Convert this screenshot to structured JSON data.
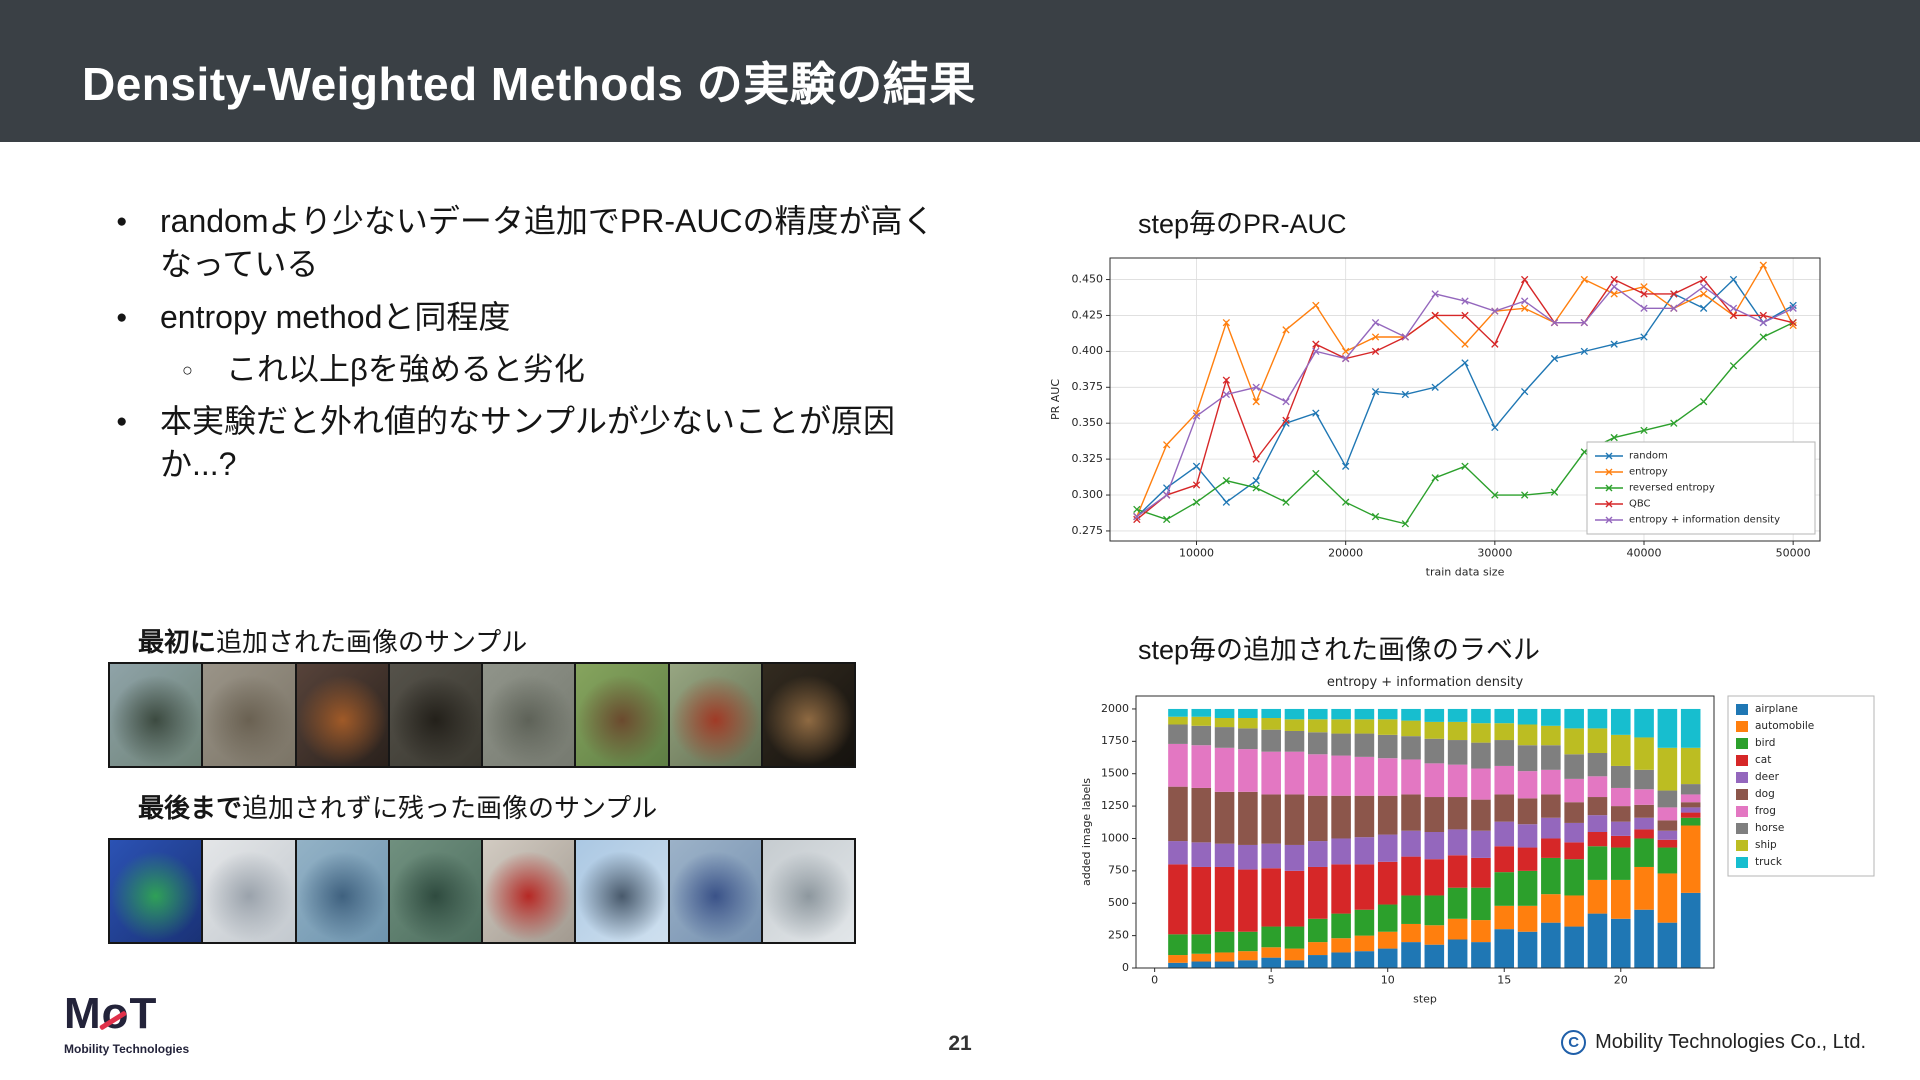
{
  "slide": {
    "title": "Density-Weighted Methods の実験の結果",
    "page_number": "21",
    "copyright_symbol": "C",
    "copyright_text": "Mobility Technologies Co., Ltd.",
    "logo_word": "MoT",
    "logo_sub": "Mobility Technologies"
  },
  "bullets": [
    {
      "level": 1,
      "marker": "●",
      "text": "randomより少ないデータ追加でPR-AUCの精度が高くなっている"
    },
    {
      "level": 1,
      "marker": "●",
      "text": "entropy methodと同程度"
    },
    {
      "level": 2,
      "marker": "○",
      "text": "これ以上βを強めると劣化"
    },
    {
      "level": 1,
      "marker": "●",
      "text": "本実験だと外れ値的なサンプルが少ないことが原因か...?"
    }
  ],
  "sections": {
    "pr_auc_label": "step毎のPR-AUC",
    "bar_label": "step毎の追加された画像のラベル",
    "first_images_label_bold": "最初に",
    "first_images_label_rest": "追加された画像のサンプル",
    "last_images_label_bold": "最後まで",
    "last_images_label_rest": "追加されずに残った画像のサンプル"
  },
  "chart_data": [
    {
      "id": "pr_auc_line",
      "type": "line",
      "title": "",
      "xlabel": "train data size",
      "ylabel": "PR AUC",
      "xlim": [
        4200,
        51800
      ],
      "ylim": [
        0.268,
        0.465
      ],
      "xticks": [
        10000,
        20000,
        30000,
        40000,
        50000
      ],
      "yticks": [
        0.275,
        0.3,
        0.325,
        0.35,
        0.375,
        0.4,
        0.425,
        0.45
      ],
      "grid": true,
      "marker": "x",
      "legend_position": "lower right",
      "x": [
        6000,
        8000,
        10000,
        12000,
        14000,
        16000,
        18000,
        20000,
        22000,
        24000,
        26000,
        28000,
        30000,
        32000,
        34000,
        36000,
        38000,
        40000,
        42000,
        44000,
        46000,
        48000,
        50000
      ],
      "series": [
        {
          "name": "random",
          "color": "#1f77b4",
          "values": [
            0.285,
            0.305,
            0.32,
            0.295,
            0.31,
            0.35,
            0.357,
            0.32,
            0.372,
            0.37,
            0.375,
            0.392,
            0.347,
            0.372,
            0.395,
            0.4,
            0.405,
            0.41,
            0.44,
            0.43,
            0.45,
            0.42,
            0.432
          ]
        },
        {
          "name": "entropy",
          "color": "#ff7f0e",
          "values": [
            0.285,
            0.335,
            0.357,
            0.42,
            0.365,
            0.415,
            0.432,
            0.4,
            0.41,
            0.41,
            0.425,
            0.405,
            0.428,
            0.43,
            0.42,
            0.45,
            0.44,
            0.445,
            0.43,
            0.44,
            0.425,
            0.46,
            0.418
          ]
        },
        {
          "name": "reversed entropy",
          "color": "#2ca02c",
          "values": [
            0.29,
            0.283,
            0.295,
            0.31,
            0.305,
            0.295,
            0.315,
            0.295,
            0.285,
            0.28,
            0.312,
            0.32,
            0.3,
            0.3,
            0.302,
            0.33,
            0.34,
            0.345,
            0.35,
            0.365,
            0.39,
            0.41,
            0.42
          ]
        },
        {
          "name": "QBC",
          "color": "#d62728",
          "values": [
            0.283,
            0.3,
            0.307,
            0.38,
            0.325,
            0.352,
            0.405,
            0.395,
            0.4,
            0.41,
            0.425,
            0.425,
            0.405,
            0.45,
            0.42,
            0.42,
            0.45,
            0.44,
            0.44,
            0.45,
            0.425,
            0.425,
            0.42
          ]
        },
        {
          "name": "entropy + information density",
          "color": "#9467bd",
          "values": [
            0.285,
            0.3,
            0.355,
            0.37,
            0.375,
            0.365,
            0.4,
            0.395,
            0.42,
            0.41,
            0.44,
            0.435,
            0.428,
            0.435,
            0.42,
            0.42,
            0.445,
            0.43,
            0.43,
            0.445,
            0.43,
            0.42,
            0.43
          ]
        }
      ]
    },
    {
      "id": "added_labels_bar",
      "type": "bar",
      "stacked": true,
      "title": "entropy + information density",
      "xlabel": "step",
      "ylabel": "added image labels",
      "xlim": [
        -0.8,
        24.0
      ],
      "ylim": [
        0,
        2100
      ],
      "xticks": [
        0,
        5,
        10,
        15,
        20
      ],
      "yticks": [
        0,
        250,
        500,
        750,
        1000,
        1250,
        1500,
        1750,
        2000
      ],
      "legend_position": "right outside",
      "x": [
        1,
        2,
        3,
        4,
        5,
        6,
        7,
        8,
        9,
        10,
        11,
        12,
        13,
        14,
        15,
        16,
        17,
        18,
        19,
        20,
        21,
        22,
        23
      ],
      "series": [
        {
          "name": "airplane",
          "color": "#1f77b4",
          "values": [
            40,
            50,
            50,
            60,
            80,
            60,
            100,
            120,
            130,
            150,
            200,
            180,
            220,
            200,
            300,
            280,
            350,
            320,
            420,
            380,
            450,
            350,
            580
          ]
        },
        {
          "name": "automobile",
          "color": "#ff7f0e",
          "values": [
            60,
            60,
            70,
            70,
            80,
            90,
            100,
            110,
            120,
            130,
            140,
            150,
            160,
            170,
            180,
            200,
            220,
            240,
            260,
            300,
            330,
            380,
            520
          ]
        },
        {
          "name": "bird",
          "color": "#2ca02c",
          "values": [
            160,
            150,
            160,
            150,
            160,
            170,
            180,
            190,
            200,
            210,
            220,
            230,
            240,
            250,
            260,
            270,
            280,
            280,
            260,
            250,
            220,
            200,
            60
          ]
        },
        {
          "name": "cat",
          "color": "#d62728",
          "values": [
            540,
            520,
            500,
            480,
            450,
            430,
            400,
            380,
            350,
            330,
            300,
            280,
            250,
            230,
            200,
            180,
            150,
            130,
            110,
            90,
            70,
            60,
            40
          ]
        },
        {
          "name": "deer",
          "color": "#9467bd",
          "values": [
            180,
            190,
            180,
            190,
            190,
            200,
            200,
            200,
            210,
            210,
            200,
            210,
            200,
            210,
            190,
            180,
            160,
            150,
            130,
            110,
            90,
            70,
            40
          ]
        },
        {
          "name": "dog",
          "color": "#8c564b",
          "values": [
            420,
            420,
            400,
            410,
            380,
            390,
            350,
            330,
            320,
            300,
            280,
            270,
            250,
            240,
            210,
            200,
            180,
            160,
            140,
            120,
            100,
            80,
            40
          ]
        },
        {
          "name": "frog",
          "color": "#e377c2",
          "values": [
            330,
            330,
            340,
            330,
            330,
            330,
            320,
            310,
            300,
            290,
            270,
            260,
            250,
            240,
            220,
            210,
            190,
            180,
            160,
            140,
            120,
            100,
            60
          ]
        },
        {
          "name": "horse",
          "color": "#7f7f7f",
          "values": [
            150,
            150,
            160,
            160,
            170,
            160,
            170,
            170,
            180,
            180,
            180,
            190,
            190,
            200,
            200,
            200,
            190,
            190,
            180,
            170,
            150,
            130,
            80
          ]
        },
        {
          "name": "ship",
          "color": "#bcbd22",
          "values": [
            60,
            70,
            70,
            80,
            90,
            90,
            100,
            110,
            110,
            120,
            120,
            130,
            140,
            150,
            130,
            160,
            150,
            200,
            190,
            240,
            250,
            330,
            280
          ]
        },
        {
          "name": "truck",
          "color": "#17becf",
          "values": [
            60,
            60,
            70,
            70,
            70,
            80,
            80,
            80,
            80,
            80,
            90,
            100,
            100,
            110,
            110,
            120,
            130,
            150,
            150,
            200,
            220,
            300,
            300
          ]
        }
      ]
    }
  ],
  "image_strips": {
    "first": {
      "images": [
        {
          "name": "bird",
          "colors": [
            "#8fa3a8",
            "#3c4a40",
            "#6d8276"
          ]
        },
        {
          "name": "pelican",
          "colors": [
            "#9a9488",
            "#6a6152",
            "#7b7466"
          ]
        },
        {
          "name": "dog",
          "colors": [
            "#57433a",
            "#a05a28",
            "#2a211c"
          ]
        },
        {
          "name": "dark-cat",
          "colors": [
            "#55524a",
            "#23201a",
            "#3a3830"
          ]
        },
        {
          "name": "cat",
          "colors": [
            "#90948a",
            "#5e6258",
            "#767a70"
          ]
        },
        {
          "name": "horse",
          "colors": [
            "#86a45e",
            "#6b4a2e",
            "#5e7e44"
          ]
        },
        {
          "name": "rooster",
          "colors": [
            "#97a682",
            "#a03a26",
            "#636f52"
          ]
        },
        {
          "name": "deer",
          "colors": [
            "#332b20",
            "#8f6a42",
            "#15120e"
          ]
        }
      ]
    },
    "last": {
      "images": [
        {
          "name": "sports-car",
          "colors": [
            "#2b52b4",
            "#2fa057",
            "#1a3276"
          ]
        },
        {
          "name": "suv",
          "colors": [
            "#e4e6e8",
            "#9aa2ab",
            "#c3c9cf"
          ]
        },
        {
          "name": "boat",
          "colors": [
            "#93b2c6",
            "#3f617f",
            "#6e94ae"
          ]
        },
        {
          "name": "boat-2",
          "colors": [
            "#70907f",
            "#2f4b3f",
            "#4d6e5e"
          ]
        },
        {
          "name": "red-car",
          "colors": [
            "#d2cbc2",
            "#b62824",
            "#a29a90"
          ]
        },
        {
          "name": "airplane",
          "colors": [
            "#abc8e3",
            "#48596b",
            "#cfe0ef"
          ]
        },
        {
          "name": "blue-car",
          "colors": [
            "#9cb2c8",
            "#3a5288",
            "#7691b0"
          ]
        },
        {
          "name": "ship",
          "colors": [
            "#c6ccd0",
            "#8d979e",
            "#e2e6e9"
          ]
        }
      ]
    }
  }
}
